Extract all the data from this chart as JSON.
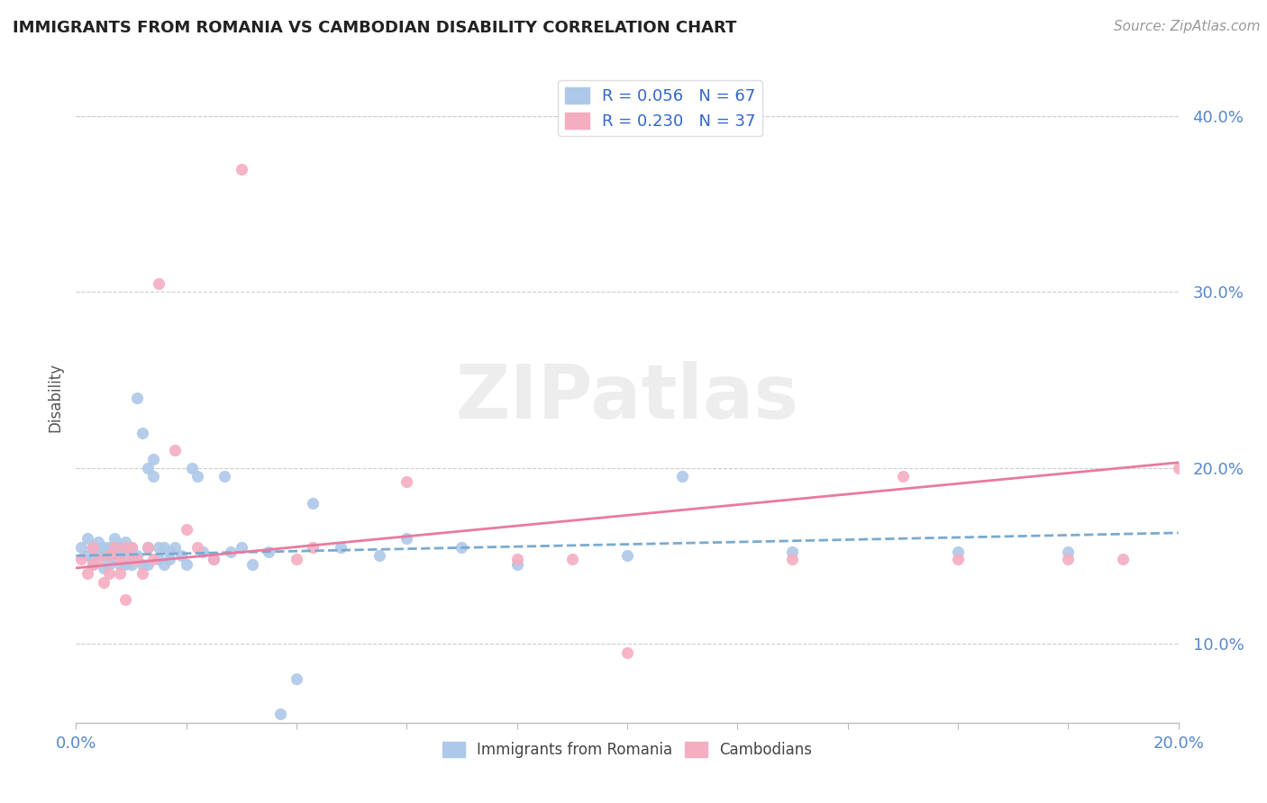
{
  "title": "IMMIGRANTS FROM ROMANIA VS CAMBODIAN DISABILITY CORRELATION CHART",
  "source": "Source: ZipAtlas.com",
  "ylabel": "Disability",
  "xlim": [
    0.0,
    0.2
  ],
  "ylim": [
    0.055,
    0.425
  ],
  "yticks": [
    0.1,
    0.2,
    0.3,
    0.4
  ],
  "ytick_labels": [
    "10.0%",
    "20.0%",
    "30.0%",
    "40.0%"
  ],
  "xticks": [
    0.0,
    0.02,
    0.04,
    0.06,
    0.08,
    0.1,
    0.12,
    0.14,
    0.16,
    0.18,
    0.2
  ],
  "legend1_label": "R = 0.056   N = 67",
  "legend2_label": "R = 0.230   N = 37",
  "color_romania": "#adc8e8",
  "color_cambodian": "#f5adc0",
  "color_romania_line": "#7aaad0",
  "color_cambodian_line": "#e87aa0",
  "grid_color": "#cccccc",
  "background_color": "#ffffff",
  "title_color": "#222222",
  "tick_color": "#5588cc",
  "romania_x": [
    0.001,
    0.002,
    0.002,
    0.003,
    0.003,
    0.003,
    0.004,
    0.004,
    0.005,
    0.005,
    0.005,
    0.006,
    0.006,
    0.006,
    0.007,
    0.007,
    0.007,
    0.007,
    0.008,
    0.008,
    0.008,
    0.009,
    0.009,
    0.009,
    0.01,
    0.01,
    0.01,
    0.011,
    0.011,
    0.012,
    0.012,
    0.013,
    0.013,
    0.013,
    0.014,
    0.014,
    0.015,
    0.015,
    0.016,
    0.016,
    0.017,
    0.017,
    0.018,
    0.019,
    0.02,
    0.021,
    0.022,
    0.023,
    0.025,
    0.027,
    0.028,
    0.03,
    0.032,
    0.035,
    0.037,
    0.04,
    0.043,
    0.048,
    0.055,
    0.06,
    0.07,
    0.08,
    0.1,
    0.11,
    0.13,
    0.16,
    0.18
  ],
  "romania_y": [
    0.155,
    0.16,
    0.15,
    0.148,
    0.155,
    0.145,
    0.152,
    0.158,
    0.15,
    0.155,
    0.143,
    0.15,
    0.155,
    0.145,
    0.152,
    0.148,
    0.155,
    0.16,
    0.145,
    0.155,
    0.15,
    0.145,
    0.152,
    0.158,
    0.15,
    0.145,
    0.155,
    0.24,
    0.15,
    0.145,
    0.22,
    0.155,
    0.2,
    0.145,
    0.195,
    0.205,
    0.155,
    0.148,
    0.155,
    0.145,
    0.152,
    0.148,
    0.155,
    0.15,
    0.145,
    0.2,
    0.195,
    0.152,
    0.148,
    0.195,
    0.152,
    0.155,
    0.145,
    0.152,
    0.06,
    0.08,
    0.18,
    0.155,
    0.15,
    0.16,
    0.155,
    0.145,
    0.15,
    0.195,
    0.152,
    0.152,
    0.152
  ],
  "cambodian_x": [
    0.001,
    0.002,
    0.003,
    0.003,
    0.004,
    0.005,
    0.006,
    0.006,
    0.007,
    0.008,
    0.008,
    0.009,
    0.009,
    0.01,
    0.01,
    0.011,
    0.012,
    0.013,
    0.014,
    0.015,
    0.018,
    0.02,
    0.022,
    0.025,
    0.03,
    0.04,
    0.043,
    0.06,
    0.08,
    0.09,
    0.1,
    0.13,
    0.15,
    0.16,
    0.18,
    0.19,
    0.2
  ],
  "cambodian_y": [
    0.148,
    0.14,
    0.145,
    0.155,
    0.148,
    0.135,
    0.15,
    0.14,
    0.155,
    0.148,
    0.14,
    0.155,
    0.125,
    0.148,
    0.155,
    0.148,
    0.14,
    0.155,
    0.148,
    0.305,
    0.21,
    0.165,
    0.155,
    0.148,
    0.37,
    0.148,
    0.155,
    0.192,
    0.148,
    0.148,
    0.095,
    0.148,
    0.195,
    0.148,
    0.148,
    0.148,
    0.2
  ],
  "romania_trend_x": [
    0.0,
    0.2
  ],
  "romania_trend_y": [
    0.15,
    0.163
  ],
  "cambodian_trend_x": [
    0.0,
    0.2
  ],
  "cambodian_trend_y": [
    0.143,
    0.203
  ]
}
